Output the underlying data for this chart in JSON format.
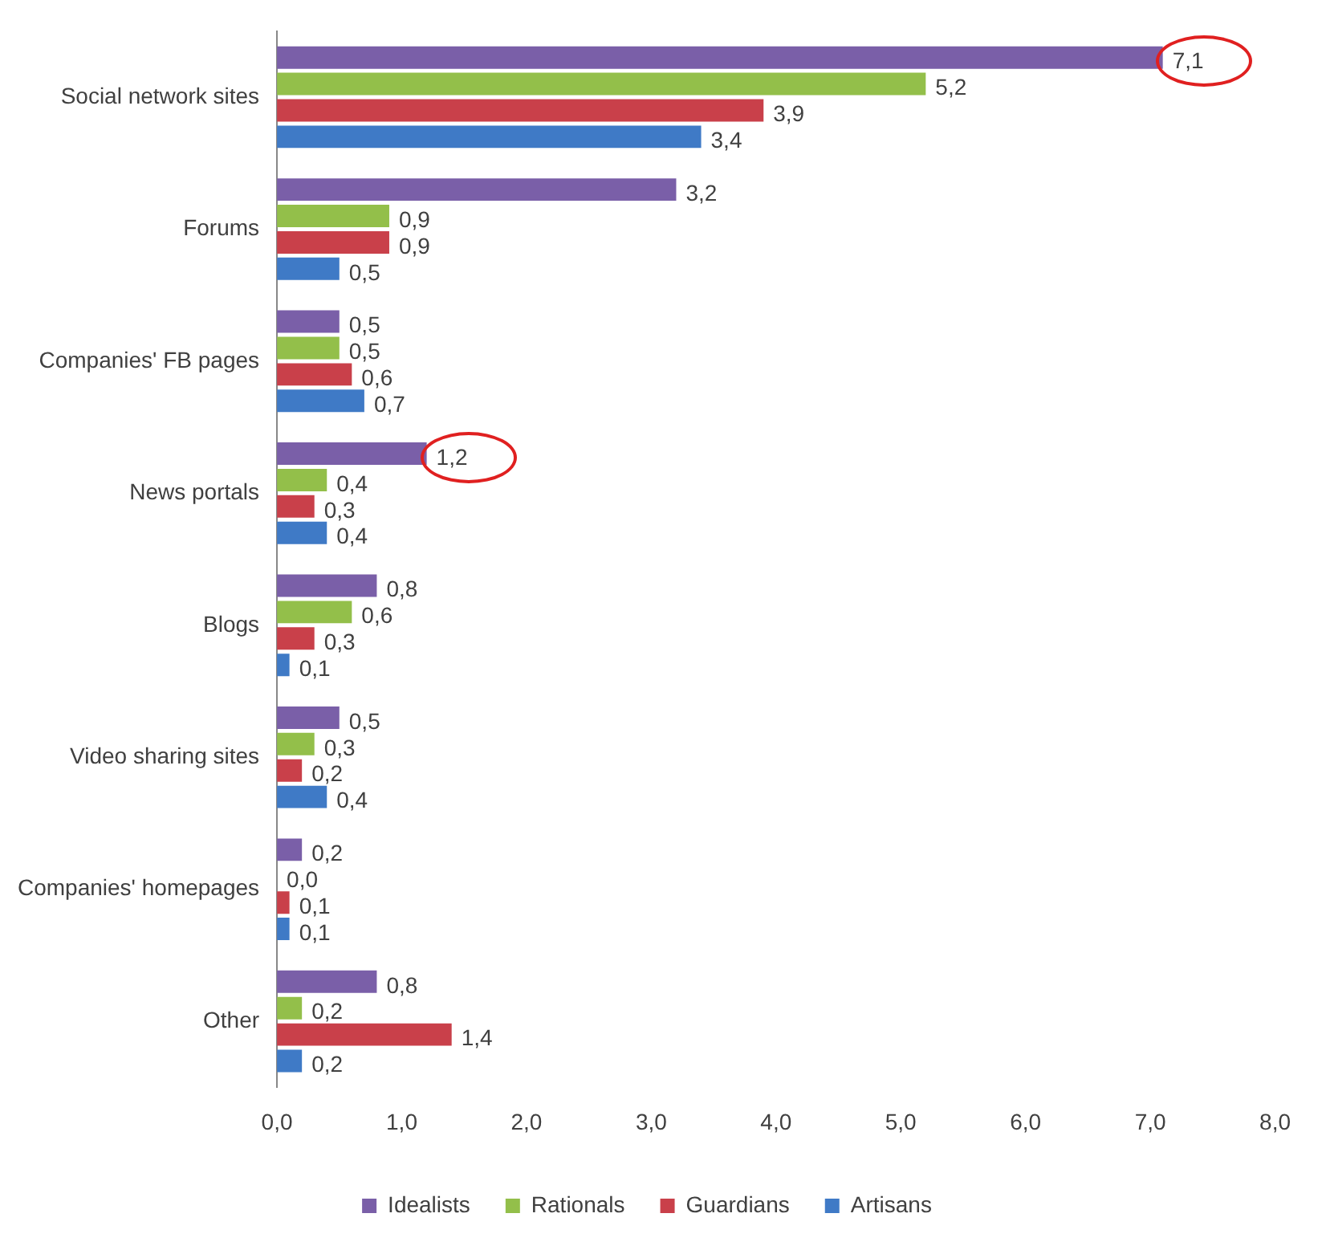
{
  "chart_data": {
    "type": "bar",
    "orientation": "horizontal",
    "categories": [
      "Social network sites",
      "Forums",
      "Companies' FB pages",
      "News portals",
      "Blogs",
      "Video sharing sites",
      "Companies' homepages",
      "Other"
    ],
    "series": [
      {
        "name": "Idealists",
        "color": "#7a5fa8",
        "values": [
          7.1,
          3.2,
          0.5,
          1.2,
          0.8,
          0.5,
          0.2,
          0.8
        ],
        "value_labels": [
          "7,1",
          "3,2",
          "0,5",
          "1,2",
          "0,8",
          "0,5",
          "0,2",
          "0,8"
        ]
      },
      {
        "name": "Rationals",
        "color": "#93bf4a",
        "values": [
          5.2,
          0.9,
          0.5,
          0.4,
          0.6,
          0.3,
          0.0,
          0.2
        ],
        "value_labels": [
          "5,2",
          "0,9",
          "0,5",
          "0,4",
          "0,6",
          "0,3",
          "0,0",
          "0,2"
        ]
      },
      {
        "name": "Guardians",
        "color": "#c9404a",
        "values": [
          3.9,
          0.9,
          0.6,
          0.3,
          0.3,
          0.2,
          0.1,
          1.4
        ],
        "value_labels": [
          "3,9",
          "0,9",
          "0,6",
          "0,3",
          "0,3",
          "0,2",
          "0,1",
          "1,4"
        ]
      },
      {
        "name": "Artisans",
        "color": "#3f7ac6",
        "values": [
          3.4,
          0.5,
          0.7,
          0.4,
          0.1,
          0.4,
          0.1,
          0.2
        ],
        "value_labels": [
          "3,4",
          "0,5",
          "0,7",
          "0,4",
          "0,1",
          "0,4",
          "0,1",
          "0,2"
        ]
      }
    ],
    "xlim": [
      0,
      8
    ],
    "xticks": [
      {
        "value": 0,
        "label": "0,0"
      },
      {
        "value": 1,
        "label": "1,0"
      },
      {
        "value": 2,
        "label": "2,0"
      },
      {
        "value": 3,
        "label": "3,0"
      },
      {
        "value": 4,
        "label": "4,0"
      },
      {
        "value": 5,
        "label": "5,0"
      },
      {
        "value": 6,
        "label": "6,0"
      },
      {
        "value": 7,
        "label": "7,0"
      },
      {
        "value": 8,
        "label": "8,0"
      }
    ],
    "grid": false,
    "legend": "bottom"
  }
}
